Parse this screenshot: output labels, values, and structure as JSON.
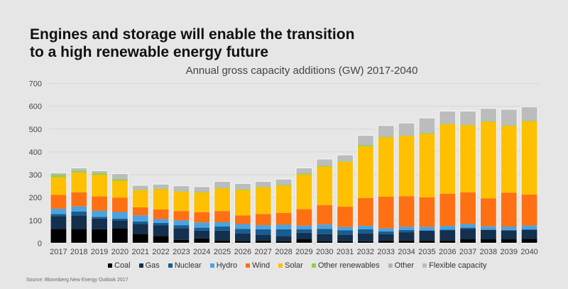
{
  "headline": {
    "line1": "Engines and storage will enable the transition",
    "line2": "to a high renewable energy future"
  },
  "source": "Source: Bloomberg New Energy Outlook 2017",
  "chart_data": {
    "type": "bar",
    "stacked": true,
    "title": "Annual gross capacity additions (GW) 2017-2040",
    "xlabel": "",
    "ylabel": "",
    "ylim": [
      0,
      700
    ],
    "yticks": [
      0,
      100,
      200,
      300,
      400,
      500,
      600,
      700
    ],
    "grid": true,
    "legend_position": "bottom",
    "categories": [
      "2017",
      "2018",
      "2019",
      "2020",
      "2021",
      "2022",
      "2023",
      "2024",
      "2025",
      "2026",
      "2027",
      "2028",
      "2029",
      "2030",
      "2031",
      "2032",
      "2033",
      "2034",
      "2035",
      "2036",
      "2037",
      "2038",
      "2039",
      "2040"
    ],
    "series": [
      {
        "name": "Coal",
        "color": "#000000",
        "values": [
          63,
          63,
          61,
          65,
          41,
          32,
          15,
          21,
          12,
          10,
          12,
          9,
          17,
          9,
          9,
          8,
          12,
          12,
          12,
          12,
          17,
          17,
          17,
          19
        ]
      },
      {
        "name": "Gas",
        "color": "#13304e",
        "values": [
          55,
          59,
          47,
          35,
          44,
          47,
          51,
          34,
          43,
          33,
          25,
          23,
          29,
          31,
          28,
          35,
          28,
          36,
          43,
          44,
          46,
          41,
          38,
          39
        ]
      },
      {
        "name": "Nuclear",
        "color": "#175d92",
        "values": [
          10,
          17,
          7,
          8,
          10,
          10,
          13,
          13,
          18,
          20,
          24,
          29,
          15,
          23,
          19,
          18,
          12,
          10,
          1,
          3,
          5,
          2,
          3,
          3
        ]
      },
      {
        "name": "Hydro",
        "color": "#4ba3e0",
        "values": [
          23,
          22,
          27,
          29,
          27,
          17,
          21,
          23,
          19,
          21,
          18,
          20,
          16,
          19,
          15,
          15,
          13,
          14,
          16,
          17,
          16,
          14,
          15,
          16
        ]
      },
      {
        "name": "Wind",
        "color": "#fe7013",
        "values": [
          61,
          62,
          63,
          63,
          35,
          42,
          41,
          45,
          49,
          38,
          49,
          52,
          72,
          85,
          89,
          122,
          139,
          134,
          129,
          141,
          139,
          123,
          148,
          136
        ]
      },
      {
        "name": "Solar",
        "color": "#fec000",
        "values": [
          77,
          87,
          95,
          74,
          75,
          88,
          85,
          86,
          99,
          111,
          117,
          119,
          152,
          169,
          197,
          227,
          260,
          264,
          278,
          304,
          294,
          335,
          293,
          321
        ]
      },
      {
        "name": "Other renewables",
        "color": "#8fcf4b",
        "values": [
          11,
          7,
          7,
          6,
          2,
          3,
          2,
          3,
          3,
          3,
          2,
          3,
          4,
          3,
          2,
          5,
          3,
          2,
          3,
          2,
          2,
          2,
          3,
          3
        ]
      },
      {
        "name": "Other",
        "color": "#b3b3b3",
        "values": [
          0,
          0,
          0,
          0,
          0,
          0,
          0,
          0,
          0,
          0,
          0,
          0,
          0,
          0,
          0,
          0,
          0,
          0,
          0,
          0,
          0,
          0,
          0,
          0
        ]
      },
      {
        "name": "Flexible capacity",
        "color": "#bcbcbc",
        "values": [
          9,
          13,
          11,
          25,
          20,
          20,
          24,
          23,
          28,
          26,
          24,
          26,
          25,
          30,
          28,
          43,
          49,
          55,
          67,
          56,
          60,
          57,
          70,
          61
        ]
      }
    ]
  }
}
